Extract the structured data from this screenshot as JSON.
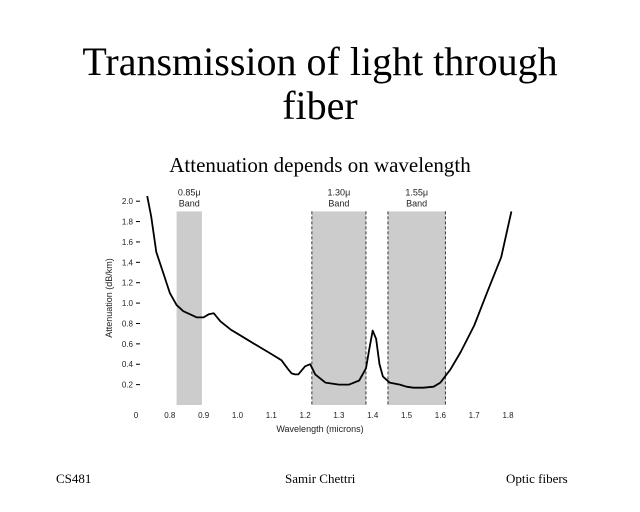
{
  "slide": {
    "title_line1": "Transmission of light through",
    "title_line2": "fiber",
    "subtitle": "Attenuation depends on wavelength"
  },
  "footer": {
    "left": "CS481",
    "center": "Samir Chettri",
    "right": "Optic fibers"
  },
  "chart_data": {
    "type": "line",
    "title": "",
    "xlabel": "Wavelength (microns)",
    "ylabel": "Attenuation (dB/km)",
    "xlim": [
      0.7,
      1.8
    ],
    "ylim": [
      0,
      2.1
    ],
    "x_ticks": [
      {
        "value": 0.7,
        "label": "0"
      },
      {
        "value": 0.8,
        "label": "0.8"
      },
      {
        "value": 0.9,
        "label": "0.9"
      },
      {
        "value": 1.0,
        "label": "1.0"
      },
      {
        "value": 1.1,
        "label": "1.1"
      },
      {
        "value": 1.2,
        "label": "1.2"
      },
      {
        "value": 1.3,
        "label": "1.3"
      },
      {
        "value": 1.4,
        "label": "1.4"
      },
      {
        "value": 1.5,
        "label": "1.5"
      },
      {
        "value": 1.6,
        "label": "1.6"
      },
      {
        "value": 1.7,
        "label": "1.7"
      },
      {
        "value": 1.8,
        "label": "1.8"
      }
    ],
    "y_ticks": [
      {
        "value": 0.2,
        "label": "0.2"
      },
      {
        "value": 0.4,
        "label": "0.4"
      },
      {
        "value": 0.6,
        "label": "0.6"
      },
      {
        "value": 0.8,
        "label": "0.8"
      },
      {
        "value": 1.0,
        "label": "1.0"
      },
      {
        "value": 1.2,
        "label": "1.2"
      },
      {
        "value": 1.4,
        "label": "1.4"
      },
      {
        "value": 1.6,
        "label": "1.6"
      },
      {
        "value": 1.8,
        "label": "1.8"
      },
      {
        "value": 2.0,
        "label": "2.0"
      }
    ],
    "bands": [
      {
        "line1": "0.85μ",
        "line2": "Band",
        "from": 0.82,
        "to": 0.895,
        "top": 1.9
      },
      {
        "line1": "1.30μ",
        "line2": "Band",
        "from": 1.22,
        "to": 1.38,
        "top": 1.9
      },
      {
        "line1": "1.55μ",
        "line2": "Band",
        "from": 1.445,
        "to": 1.615,
        "top": 1.9
      }
    ],
    "series": [
      {
        "name": "Attenuation",
        "x": [
          0.733,
          0.745,
          0.76,
          0.78,
          0.8,
          0.82,
          0.84,
          0.86,
          0.88,
          0.9,
          0.915,
          0.93,
          0.95,
          0.98,
          1.0,
          1.03,
          1.06,
          1.1,
          1.13,
          1.15,
          1.16,
          1.17,
          1.18,
          1.2,
          1.215,
          1.23,
          1.26,
          1.3,
          1.33,
          1.36,
          1.38,
          1.39,
          1.4,
          1.41,
          1.42,
          1.43,
          1.45,
          1.48,
          1.5,
          1.52,
          1.55,
          1.58,
          1.6,
          1.63,
          1.66,
          1.7,
          1.74,
          1.78,
          1.81
        ],
        "y": [
          2.05,
          1.85,
          1.5,
          1.3,
          1.1,
          0.98,
          0.92,
          0.89,
          0.86,
          0.86,
          0.89,
          0.9,
          0.82,
          0.74,
          0.7,
          0.64,
          0.58,
          0.5,
          0.44,
          0.35,
          0.31,
          0.3,
          0.3,
          0.38,
          0.4,
          0.3,
          0.22,
          0.2,
          0.2,
          0.24,
          0.36,
          0.55,
          0.73,
          0.65,
          0.4,
          0.28,
          0.22,
          0.2,
          0.18,
          0.17,
          0.17,
          0.18,
          0.22,
          0.35,
          0.52,
          0.78,
          1.12,
          1.45,
          1.9
        ]
      }
    ]
  }
}
